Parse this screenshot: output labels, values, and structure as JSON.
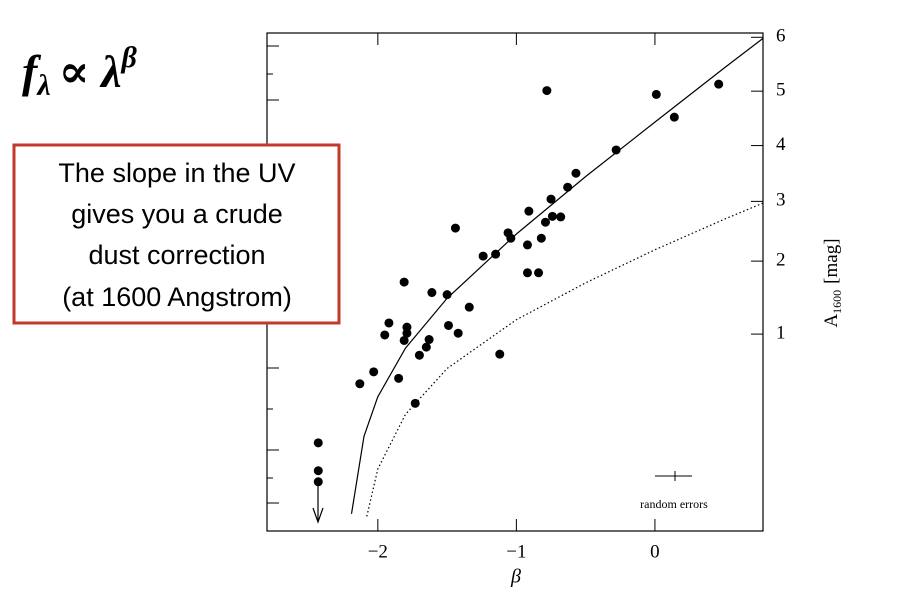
{
  "chart_data": {
    "type": "scatter",
    "formula": {
      "base": "f",
      "sub": "λ",
      "rel": "∝ λ",
      "sup": "β"
    },
    "annotations": [
      "The slope in the UV",
      "gives you a crude",
      "dust correction",
      "(at 1600 Angstrom)"
    ],
    "x_label": "β",
    "y_label": {
      "main": "A",
      "sub": "1600",
      "unit": "[mag]"
    },
    "error_label": "random errors",
    "xlim": [
      -2.8,
      0.78
    ],
    "xticks": [
      {
        "value": -2,
        "label": "−2"
      },
      {
        "value": -1,
        "label": "−1"
      },
      {
        "value": 0,
        "label": "0"
      }
    ],
    "ylim": [
      0.054,
      6.08
    ],
    "yscale": "log(10^(0.4A)-1)",
    "yticks": [
      1,
      2,
      3,
      4,
      5,
      6
    ],
    "series": [
      {
        "mark": "dot",
        "color": "#000000",
        "x": [
          -2.43,
          -2.43,
          -2.43,
          -2.13,
          -2.03,
          -1.92,
          -1.95,
          -1.85,
          -1.81,
          -1.79,
          -1.79,
          -1.81,
          -1.7,
          -1.73,
          -1.65,
          -1.63,
          -1.61,
          -1.5,
          -1.49,
          -1.44,
          -1.42,
          -1.34,
          -1.24,
          -1.15,
          -1.12,
          -1.06,
          -1.04,
          -0.92,
          -0.91,
          -0.92,
          -0.84,
          -0.82,
          -0.78,
          -0.79,
          -0.75,
          -0.74,
          -0.68,
          -0.63,
          -0.57,
          -0.28,
          0.01,
          0.14,
          0.46
        ],
        "values": [
          0.227,
          0.146,
          0.122,
          0.539,
          0.632,
          1.13,
          0.99,
          0.58,
          1.68,
          1.08,
          1.01,
          0.93,
          0.78,
          0.41,
          0.86,
          0.94,
          1.53,
          1.5,
          1.1,
          2.54,
          1.01,
          1.33,
          2.08,
          2.11,
          0.79,
          2.46,
          2.37,
          2.26,
          2.83,
          1.82,
          1.82,
          2.37,
          5.01,
          2.64,
          3.04,
          2.74,
          2.73,
          3.25,
          3.5,
          3.92,
          4.94,
          4.52,
          5.13
        ]
      },
      {
        "mark": "line",
        "dash": "solid",
        "color": "#000000",
        "x": [
          -2.19,
          -2.1,
          -2.0,
          -1.8,
          -1.5,
          -1.0,
          -0.5,
          0,
          0.5,
          0.78
        ],
        "values": [
          0.072,
          0.251,
          0.45,
          0.85,
          1.45,
          2.44,
          3.44,
          4.43,
          5.43,
          5.98
        ]
      },
      {
        "mark": "line",
        "dash": "dotted",
        "color": "#000000",
        "x": [
          -2.08,
          -2.0,
          -1.8,
          -1.5,
          -1.0,
          -0.5,
          0,
          0.5,
          0.78
        ],
        "values": [
          0.069,
          0.15,
          0.35,
          0.66,
          1.17,
          1.67,
          2.18,
          2.69,
          2.97
        ]
      }
    ]
  }
}
